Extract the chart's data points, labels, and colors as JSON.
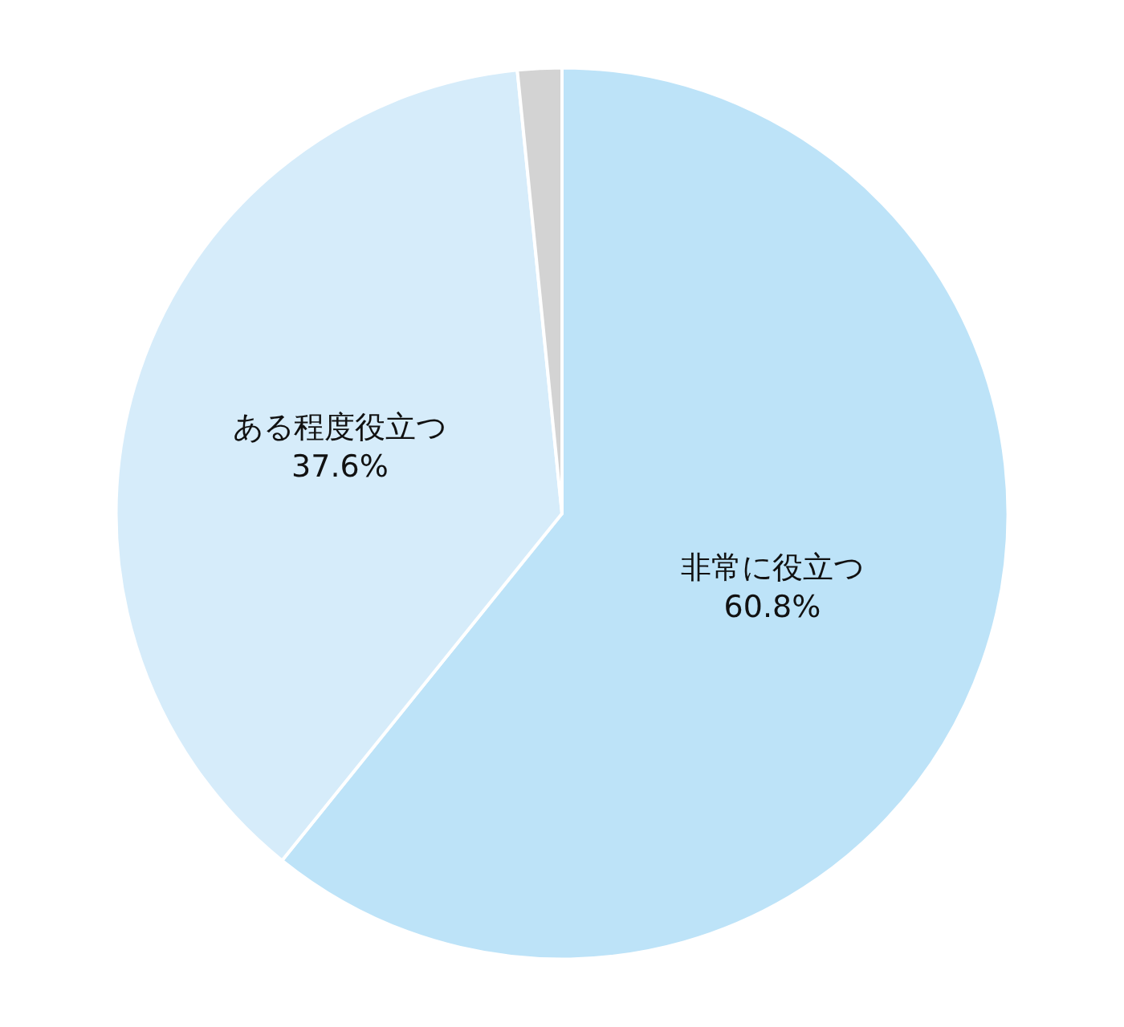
{
  "chart_data": {
    "type": "pie",
    "categories": [
      "非常に役立つ",
      "ある程度役立つ",
      null
    ],
    "values": [
      60.8,
      37.6,
      1.6
    ],
    "value_labels": [
      "60.8%",
      "37.6%",
      null
    ],
    "colors": [
      "#bde3f8",
      "#d6ecfa",
      "#d3d3d3"
    ],
    "legend": false
  }
}
